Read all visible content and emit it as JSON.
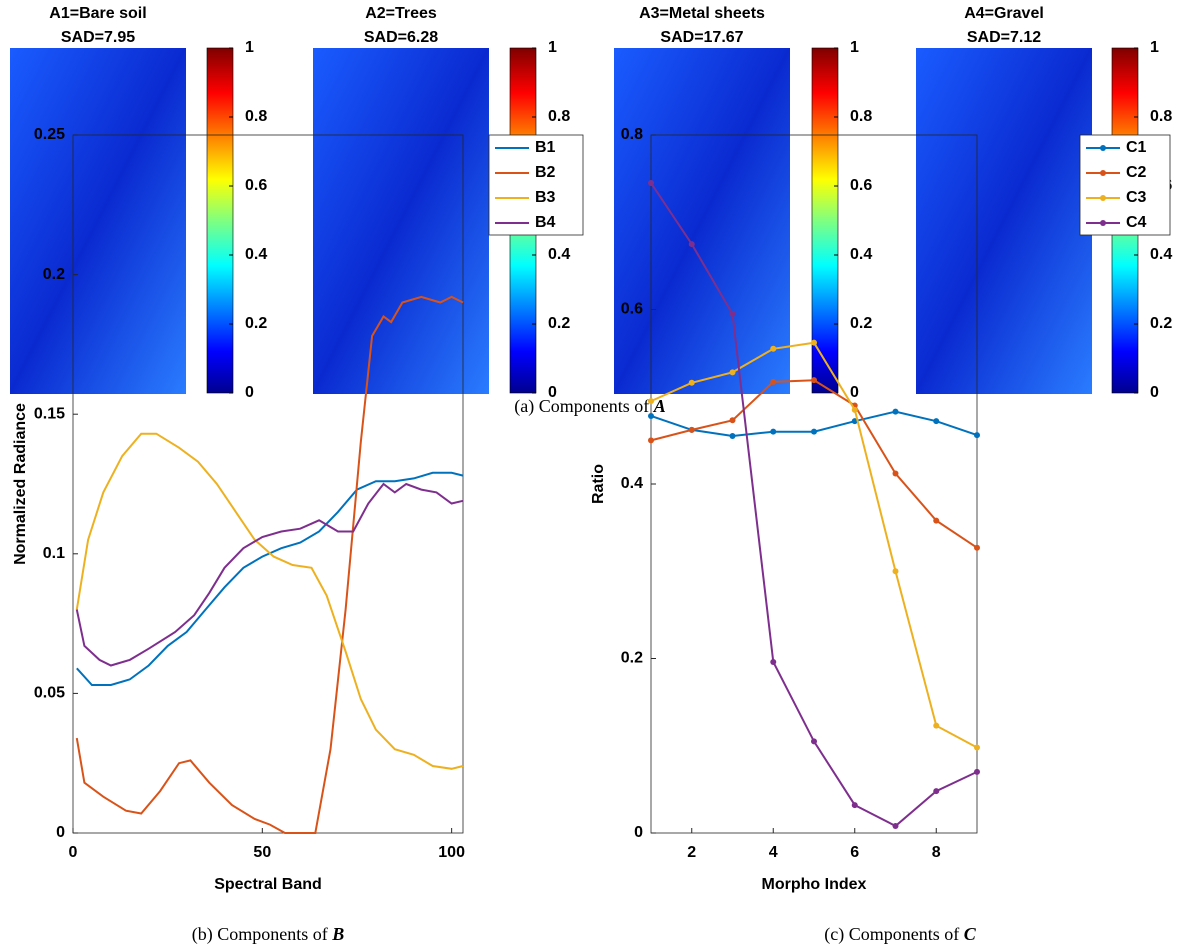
{
  "captions": [
    [
      "(a) Components of ",
      "A"
    ],
    [
      "(b) Components of ",
      "B"
    ],
    [
      "(c) Components of ",
      "C"
    ]
  ],
  "chart_data": [
    {
      "type": "image",
      "title": "A1=Bare soil",
      "subtitle": "SAD=7.95",
      "clim": [
        0,
        1
      ],
      "cticks": [
        0,
        0.2,
        0.4,
        0.6,
        0.8,
        1
      ]
    },
    {
      "type": "image",
      "title": "A2=Trees",
      "subtitle": "SAD=6.28",
      "clim": [
        0,
        1
      ],
      "cticks": [
        0,
        0.2,
        0.4,
        0.6,
        0.8,
        1
      ]
    },
    {
      "type": "image",
      "title": "A3=Metal sheets",
      "subtitle": "SAD=17.67",
      "clim": [
        0,
        1
      ],
      "cticks": [
        0,
        0.2,
        0.4,
        0.6,
        0.8,
        1
      ]
    },
    {
      "type": "image",
      "title": "A4=Gravel",
      "subtitle": "SAD=7.12",
      "clim": [
        0,
        1
      ],
      "cticks": [
        0,
        0.2,
        0.4,
        0.6,
        0.8,
        1
      ]
    },
    {
      "type": "line",
      "xlabel": "Spectral Band",
      "ylabel": "Normalized Radiance",
      "markers": false,
      "xlim": [
        0,
        103
      ],
      "xticks": [
        0,
        50,
        100
      ],
      "ylim": [
        0,
        0.25
      ],
      "yticks": [
        0,
        0.05,
        0.1,
        0.15,
        0.2,
        0.25
      ],
      "series": [
        {
          "name": "B1",
          "color": "#0072BD",
          "x": [
            1,
            5,
            10,
            15,
            20,
            25,
            30,
            35,
            40,
            45,
            50,
            55,
            60,
            65,
            70,
            75,
            80,
            85,
            90,
            95,
            100,
            103
          ],
          "values": [
            0.059,
            0.053,
            0.053,
            0.055,
            0.06,
            0.067,
            0.072,
            0.08,
            0.088,
            0.095,
            0.099,
            0.102,
            0.104,
            0.108,
            0.115,
            0.123,
            0.126,
            0.126,
            0.127,
            0.129,
            0.129,
            0.128
          ]
        },
        {
          "name": "B2",
          "color": "#D95319",
          "x": [
            1,
            3,
            8,
            14,
            18,
            23,
            28,
            31,
            36,
            42,
            48,
            52,
            56,
            60,
            64,
            68,
            72,
            76,
            79,
            82,
            84,
            87,
            92,
            97,
            100,
            103
          ],
          "values": [
            0.034,
            0.018,
            0.013,
            0.008,
            0.007,
            0.015,
            0.025,
            0.026,
            0.018,
            0.01,
            0.005,
            0.003,
            0,
            0,
            0,
            0.03,
            0.08,
            0.14,
            0.178,
            0.185,
            0.183,
            0.19,
            0.192,
            0.19,
            0.192,
            0.19
          ]
        },
        {
          "name": "B3",
          "color": "#EDB120",
          "x": [
            1,
            4,
            8,
            13,
            18,
            22,
            28,
            33,
            38,
            43,
            48,
            53,
            58,
            63,
            67,
            72,
            76,
            80,
            85,
            90,
            95,
            100,
            103
          ],
          "values": [
            0.08,
            0.105,
            0.122,
            0.135,
            0.143,
            0.143,
            0.138,
            0.133,
            0.125,
            0.115,
            0.105,
            0.099,
            0.096,
            0.095,
            0.085,
            0.065,
            0.048,
            0.037,
            0.03,
            0.028,
            0.024,
            0.023,
            0.024
          ]
        },
        {
          "name": "B4",
          "color": "#7E2F8E",
          "x": [
            1,
            3,
            7,
            10,
            15,
            20,
            27,
            32,
            36,
            40,
            45,
            50,
            55,
            60,
            65,
            70,
            74,
            78,
            82,
            85,
            88,
            92,
            96,
            100,
            103
          ],
          "values": [
            0.08,
            0.067,
            0.062,
            0.06,
            0.062,
            0.066,
            0.072,
            0.078,
            0.086,
            0.095,
            0.102,
            0.106,
            0.108,
            0.109,
            0.112,
            0.108,
            0.108,
            0.118,
            0.125,
            0.122,
            0.125,
            0.123,
            0.122,
            0.118,
            0.119
          ]
        }
      ]
    },
    {
      "type": "line",
      "xlabel": "Morpho Index",
      "ylabel": "Ratio",
      "markers": true,
      "xlim": [
        1,
        9
      ],
      "xticks": [
        2,
        4,
        6,
        8
      ],
      "ylim": [
        0,
        0.8
      ],
      "yticks": [
        0,
        0.2,
        0.4,
        0.6,
        0.8
      ],
      "series": [
        {
          "name": "C1",
          "color": "#0072BD",
          "x": [
            1,
            2,
            3,
            4,
            5,
            6,
            7,
            8,
            9
          ],
          "values": [
            0.478,
            0.462,
            0.455,
            0.46,
            0.46,
            0.472,
            0.483,
            0.472,
            0.456
          ]
        },
        {
          "name": "C2",
          "color": "#D95319",
          "x": [
            1,
            2,
            3,
            4,
            5,
            6,
            7,
            8,
            9
          ],
          "values": [
            0.45,
            0.462,
            0.473,
            0.517,
            0.519,
            0.49,
            0.412,
            0.358,
            0.327
          ]
        },
        {
          "name": "C3",
          "color": "#EDB120",
          "x": [
            1,
            2,
            3,
            4,
            5,
            6,
            7,
            8,
            9
          ],
          "values": [
            0.495,
            0.516,
            0.528,
            0.555,
            0.562,
            0.485,
            0.3,
            0.123,
            0.098
          ]
        },
        {
          "name": "C4",
          "color": "#7E2F8E",
          "x": [
            1,
            2,
            3,
            4,
            5,
            6,
            7,
            8,
            9
          ],
          "values": [
            0.745,
            0.675,
            0.595,
            0.196,
            0.105,
            0.032,
            0.008,
            0.048,
            0.07
          ]
        }
      ]
    }
  ]
}
